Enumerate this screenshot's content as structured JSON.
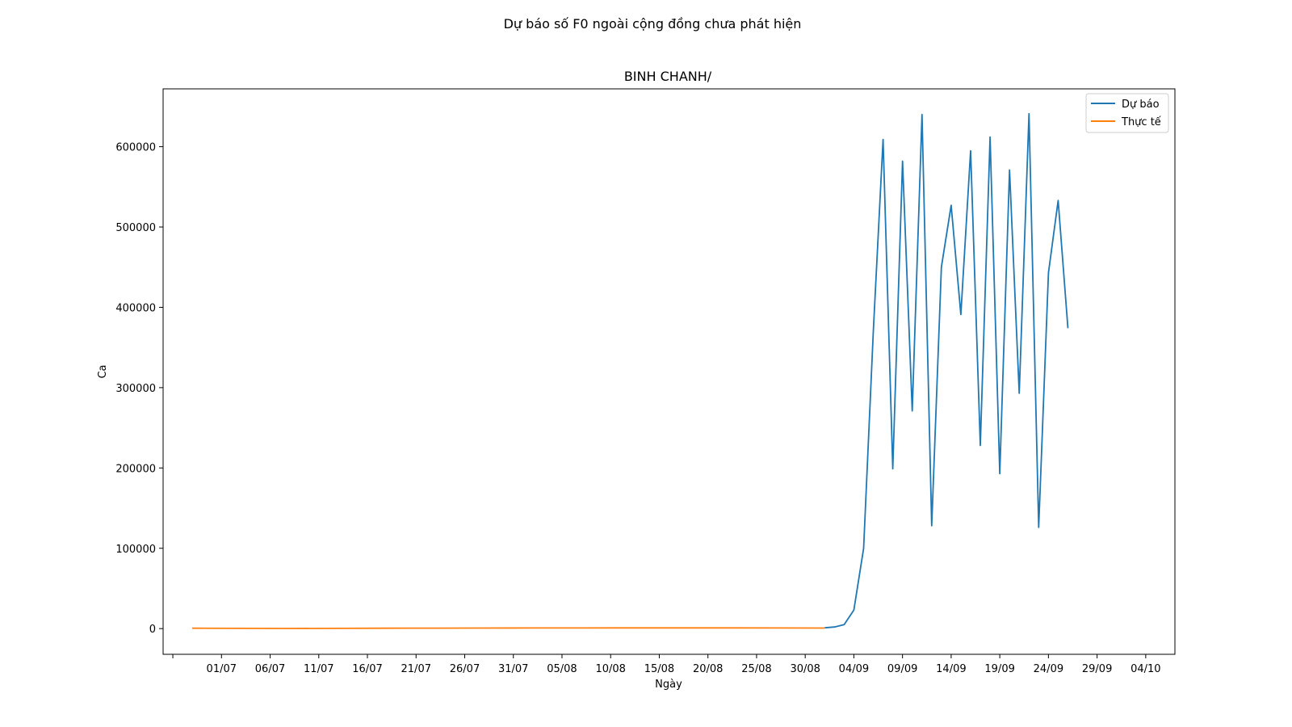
{
  "suptitle": "Dự báo số F0 ngoài cộng đồng chưa phát hiện",
  "chart_data": {
    "type": "line",
    "title": "BINH CHANH/",
    "xlabel": "Ngày",
    "ylabel": "Ca",
    "xlim": [
      "2021-06-25",
      "2021-10-07"
    ],
    "ylim": [
      -32000,
      672000
    ],
    "x_ticks": [
      "2021-06-26",
      "2021-07-01",
      "2021-07-06",
      "2021-07-11",
      "2021-07-16",
      "2021-07-21",
      "2021-07-26",
      "2021-07-31",
      "2021-08-05",
      "2021-08-10",
      "2021-08-15",
      "2021-08-20",
      "2021-08-25",
      "2021-08-30",
      "2021-09-04",
      "2021-09-09",
      "2021-09-14",
      "2021-09-19",
      "2021-09-24",
      "2021-09-29",
      "2021-10-04"
    ],
    "x_tick_labels": [
      "",
      "01/07",
      "06/07",
      "11/07",
      "16/07",
      "21/07",
      "26/07",
      "31/07",
      "05/08",
      "10/08",
      "15/08",
      "20/08",
      "25/08",
      "30/08",
      "04/09",
      "09/09",
      "14/09",
      "19/09",
      "24/09",
      "29/09",
      "04/10"
    ],
    "y_ticks": [
      0,
      100000,
      200000,
      300000,
      400000,
      500000,
      600000
    ],
    "y_tick_labels": [
      "0",
      "100000",
      "200000",
      "300000",
      "400000",
      "500000",
      "600000"
    ],
    "grid": false,
    "legend": "upper right",
    "series": [
      {
        "name": "Dự báo",
        "color": "#1f77b4",
        "x": [
          "2021-09-01",
          "2021-09-02",
          "2021-09-03",
          "2021-09-04",
          "2021-09-05",
          "2021-09-06",
          "2021-09-07",
          "2021-09-08",
          "2021-09-09",
          "2021-09-10",
          "2021-09-11",
          "2021-09-12",
          "2021-09-13",
          "2021-09-14",
          "2021-09-15",
          "2021-09-16",
          "2021-09-17",
          "2021-09-18",
          "2021-09-19",
          "2021-09-20",
          "2021-09-21",
          "2021-09-22",
          "2021-09-23",
          "2021-09-24",
          "2021-09-25",
          "2021-09-26"
        ],
        "y": [
          1000,
          2000,
          5000,
          23000,
          100000,
          370000,
          609000,
          199000,
          582000,
          271000,
          640000,
          128000,
          450000,
          527000,
          391000,
          595000,
          228000,
          612000,
          193000,
          571000,
          293000,
          641000,
          126000,
          443000,
          533000,
          374000
        ]
      },
      {
        "name": "Thực tế",
        "color": "#ff7f0e",
        "x": [
          "2021-06-28",
          "2021-07-03",
          "2021-07-08",
          "2021-07-13",
          "2021-07-18",
          "2021-07-23",
          "2021-07-28",
          "2021-08-02",
          "2021-08-07",
          "2021-08-12",
          "2021-08-17",
          "2021-08-22",
          "2021-08-27",
          "2021-09-01"
        ],
        "y": [
          500,
          300,
          200,
          300,
          500,
          600,
          700,
          800,
          800,
          900,
          900,
          900,
          800,
          700
        ]
      }
    ]
  }
}
